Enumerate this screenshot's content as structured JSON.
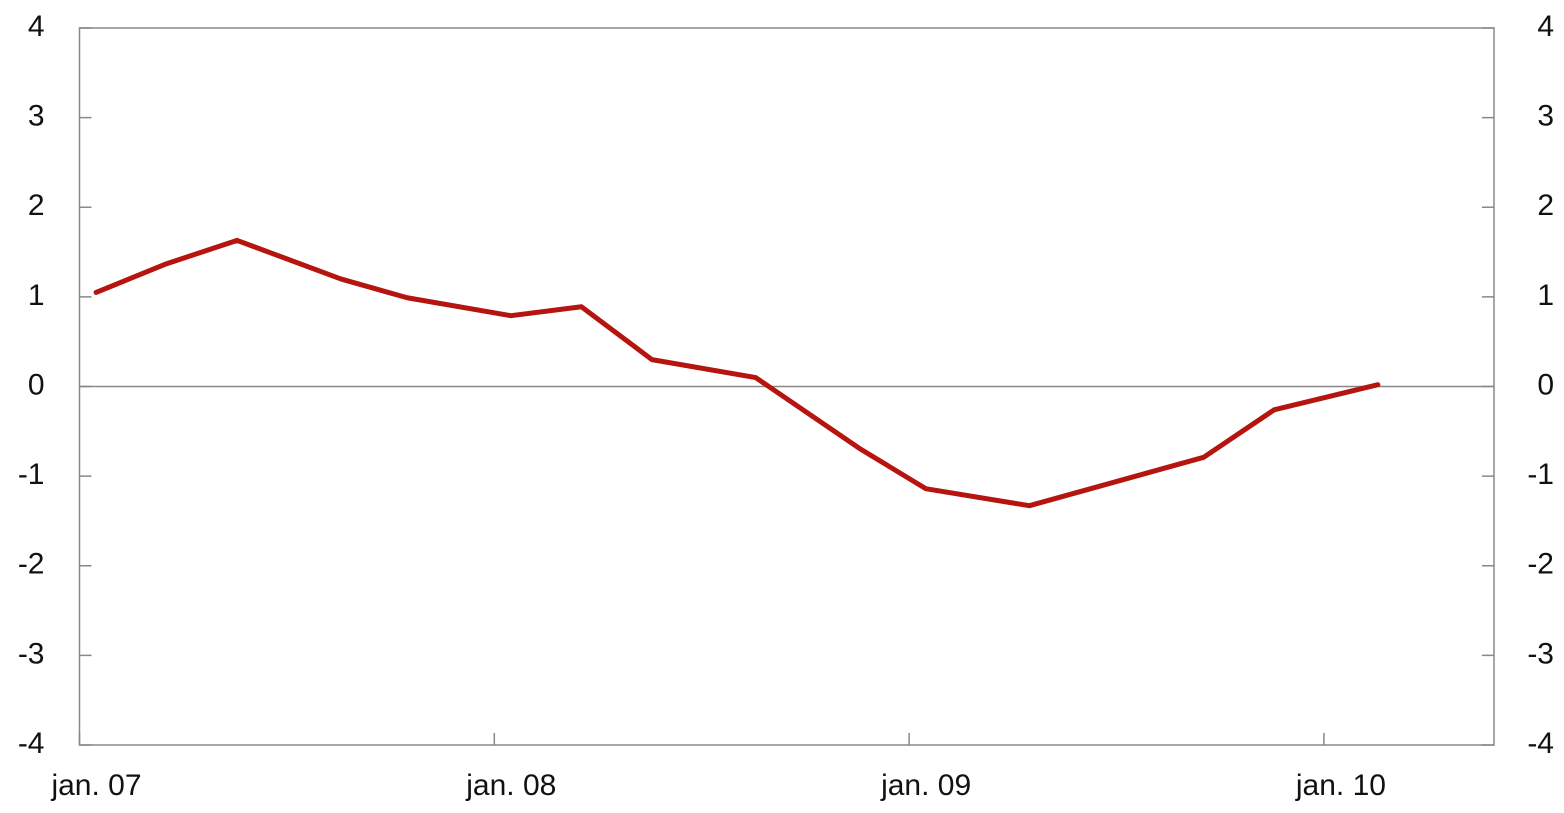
{
  "chart_data": {
    "type": "line",
    "x": [
      2007.04,
      2007.21,
      2007.38,
      2007.63,
      2007.79,
      2008.04,
      2008.21,
      2008.38,
      2008.63,
      2008.88,
      2009.04,
      2009.29,
      2009.71,
      2009.88,
      2010.13
    ],
    "series": [
      {
        "color": "#b5140f",
        "values": [
          1.05,
          1.37,
          1.63,
          1.2,
          0.99,
          0.79,
          0.89,
          0.3,
          0.1,
          -0.69,
          -1.14,
          -1.33,
          -0.79,
          -0.26,
          0.02
        ]
      }
    ],
    "xlim": [
      2007,
      2010.41
    ],
    "xticks": [
      {
        "value": 2007,
        "label": "jan. 07"
      },
      {
        "value": 2008,
        "label": "jan. 08"
      },
      {
        "value": 2009,
        "label": "jan. 09"
      },
      {
        "value": 2010,
        "label": "jan. 10"
      }
    ],
    "ylim": [
      -4,
      4
    ],
    "yticks": [
      -4,
      -3,
      -2,
      -1,
      0,
      1,
      2,
      3,
      4
    ],
    "y2lim": [
      -4,
      4
    ],
    "y2ticks": [
      -4,
      -3,
      -2,
      -1,
      0,
      1,
      2,
      3,
      4
    ]
  }
}
